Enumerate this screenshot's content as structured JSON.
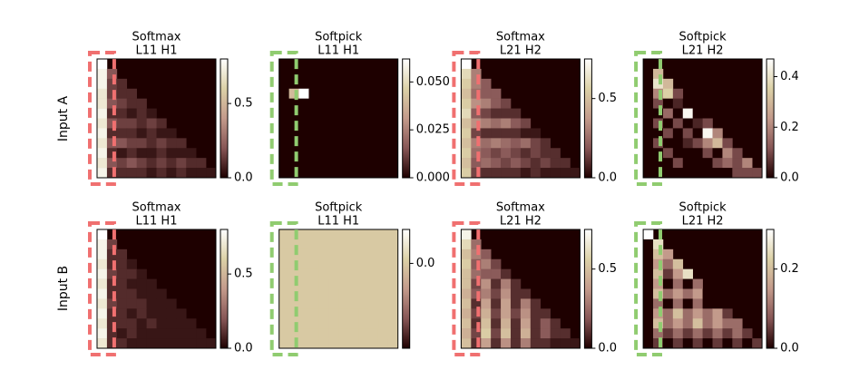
{
  "chart_data": [
    {
      "type": "heatmap",
      "title": "Softmax",
      "subtitle": "L11 H1",
      "ylabel": "Input A",
      "highlight": "#f07070",
      "colormap": [
        "#1e0000",
        "#875656",
        "#c39a8b",
        "#dcd1a7",
        "#ffffff"
      ],
      "clim": [
        0,
        0.8
      ],
      "cticks": [
        {
          "value": 0,
          "label": "0.0"
        },
        0.5
      ],
      "values": [
        [
          0.8
        ],
        [
          0.75,
          0.2
        ],
        [
          0.75,
          0.15,
          0.1
        ],
        [
          0.7,
          0.15,
          0.1,
          0.1
        ],
        [
          0.7,
          0.2,
          0.15,
          0.1,
          0.1
        ],
        [
          0.75,
          0.1,
          0.1,
          0.05,
          0.1,
          0.05
        ],
        [
          0.7,
          0.2,
          0.15,
          0.15,
          0.1,
          0.15,
          0.1
        ],
        [
          0.75,
          0.1,
          0.1,
          0.1,
          0.05,
          0.1,
          0.05,
          0.05
        ],
        [
          0.7,
          0.2,
          0.2,
          0.15,
          0.15,
          0.1,
          0.15,
          0.1,
          0.1
        ],
        [
          0.75,
          0.1,
          0.05,
          0.1,
          0.05,
          0.05,
          0.1,
          0.05,
          0.05,
          0.05
        ],
        [
          0.7,
          0.2,
          0.15,
          0.2,
          0.15,
          0.1,
          0.15,
          0.1,
          0.15,
          0.1,
          0.1
        ],
        [
          0.75,
          0.1,
          0.1,
          0.1,
          0.1,
          0.05,
          0.1,
          0.05,
          0.1,
          0.05,
          0.05,
          0.05
        ]
      ]
    },
    {
      "type": "heatmap",
      "title": "Softpick",
      "subtitle": "L11 H1",
      "highlight": "#90cc70",
      "colormap": [
        "#1e0000",
        "#875656",
        "#c39a8b",
        "#dcd1a7",
        "#ffffff"
      ],
      "clim": [
        0,
        0.062
      ],
      "cticks": [
        {
          "value": 0,
          "label": "0.000"
        },
        0.025,
        {
          "value": 0.05,
          "label": "0.050"
        }
      ],
      "values": [
        [
          0
        ],
        [
          0,
          0
        ],
        [
          0,
          0,
          0
        ],
        [
          0,
          0.04,
          0.062,
          0
        ],
        [
          0,
          0,
          0,
          0,
          0
        ],
        [
          0,
          0,
          0,
          0,
          0,
          0
        ],
        [
          0,
          0,
          0,
          0,
          0,
          0,
          0
        ],
        [
          0,
          0,
          0,
          0,
          0,
          0,
          0,
          0
        ],
        [
          0,
          0,
          0,
          0,
          0,
          0,
          0,
          0,
          0
        ],
        [
          0,
          0,
          0,
          0,
          0,
          0,
          0,
          0,
          0,
          0
        ],
        [
          0,
          0,
          0,
          0,
          0,
          0,
          0,
          0,
          0,
          0,
          0
        ],
        [
          0,
          0,
          0,
          0,
          0,
          0,
          0,
          0,
          0,
          0,
          0,
          0
        ]
      ]
    },
    {
      "type": "heatmap",
      "title": "Softmax",
      "subtitle": "L21 H2",
      "highlight": "#f07070",
      "colormap": [
        "#1e0000",
        "#875656",
        "#c39a8b",
        "#dcd1a7",
        "#ffffff"
      ],
      "clim": [
        0,
        0.75
      ],
      "cticks": [
        {
          "value": 0,
          "label": "0.0"
        },
        0.5
      ],
      "values": [
        [
          0.75
        ],
        [
          0.6,
          0.3
        ],
        [
          0.55,
          0.3,
          0.2
        ],
        [
          0.5,
          0.25,
          0.2,
          0.2
        ],
        [
          0.55,
          0.35,
          0.3,
          0.2,
          0.15
        ],
        [
          0.6,
          0.2,
          0.15,
          0.1,
          0.1,
          0.1
        ],
        [
          0.5,
          0.35,
          0.3,
          0.25,
          0.3,
          0.2,
          0.15
        ],
        [
          0.55,
          0.15,
          0.1,
          0.1,
          0.1,
          0.1,
          0.05,
          0.05
        ],
        [
          0.5,
          0.3,
          0.25,
          0.3,
          0.25,
          0.2,
          0.25,
          0.15,
          0.1
        ],
        [
          0.55,
          0.25,
          0.2,
          0.15,
          0.2,
          0.15,
          0.1,
          0.15,
          0.1,
          0.1
        ],
        [
          0.5,
          0.2,
          0.25,
          0.2,
          0.15,
          0.2,
          0.15,
          0.1,
          0.15,
          0.1,
          0.1
        ],
        [
          0.55,
          0.15,
          0.1,
          0.1,
          0.1,
          0.1,
          0.05,
          0.1,
          0.05,
          0.05,
          0.05,
          0.05
        ]
      ]
    },
    {
      "type": "heatmap",
      "title": "Softpick",
      "subtitle": "L21 H2",
      "highlight": "#90cc70",
      "colormap": [
        "#1e0000",
        "#875656",
        "#c39a8b",
        "#dcd1a7",
        "#ffffff"
      ],
      "clim": [
        0,
        0.47
      ],
      "cticks": [
        {
          "value": 0,
          "label": "0.0"
        },
        0.2,
        0.4
      ],
      "values": [
        [
          0
        ],
        [
          0,
          0.3
        ],
        [
          0,
          0.4,
          0.3
        ],
        [
          0,
          0.2,
          0.35,
          0.1
        ],
        [
          0,
          0.1,
          0,
          0.05,
          0
        ],
        [
          0,
          0,
          0.15,
          0,
          0.45,
          0
        ],
        [
          0,
          0.1,
          0,
          0.1,
          0,
          0.05,
          0.1
        ],
        [
          0,
          0,
          0.1,
          0,
          0.1,
          0,
          0.45,
          0.2
        ],
        [
          0,
          0.1,
          0,
          0,
          0.05,
          0.1,
          0.2,
          0.3,
          0.1
        ],
        [
          0,
          0,
          0.1,
          0,
          0,
          0,
          0.1,
          0,
          0.2,
          0.1
        ],
        [
          0,
          0,
          0,
          0.1,
          0,
          0,
          0,
          0.1,
          0.15,
          0.1,
          0.2
        ],
        [
          0,
          0,
          0,
          0,
          0,
          0,
          0,
          0,
          0,
          0.1,
          0.1,
          0.1
        ]
      ]
    },
    {
      "type": "heatmap",
      "title": "Softmax",
      "subtitle": "L11 H1",
      "ylabel": "Input B",
      "highlight": "#f07070",
      "colormap": [
        "#1e0000",
        "#875656",
        "#c39a8b",
        "#dcd1a7",
        "#ffffff"
      ],
      "clim": [
        0,
        0.8
      ],
      "cticks": [
        {
          "value": 0,
          "label": "0.0"
        },
        0.5
      ],
      "values": [
        [
          0.8
        ],
        [
          0.75,
          0.15
        ],
        [
          0.75,
          0.1,
          0.1
        ],
        [
          0.7,
          0.1,
          0.1,
          0.05
        ],
        [
          0.75,
          0.15,
          0.1,
          0.1,
          0.05
        ],
        [
          0.7,
          0.1,
          0.1,
          0.05,
          0.05,
          0.05
        ],
        [
          0.75,
          0.1,
          0.1,
          0.1,
          0.05,
          0.05,
          0.05
        ],
        [
          0.7,
          0.15,
          0.1,
          0.1,
          0.1,
          0.05,
          0.05,
          0.05
        ],
        [
          0.75,
          0.1,
          0.1,
          0.05,
          0.1,
          0.05,
          0.05,
          0.05,
          0.05
        ],
        [
          0.7,
          0.1,
          0.1,
          0.1,
          0.05,
          0.1,
          0.05,
          0.05,
          0.05,
          0.05
        ],
        [
          0.75,
          0.1,
          0.05,
          0.1,
          0.05,
          0.05,
          0.05,
          0.05,
          0.05,
          0.05,
          0.05
        ],
        [
          0.7,
          0.1,
          0.1,
          0.05,
          0.05,
          0.05,
          0.05,
          0.05,
          0.05,
          0.05,
          0.05,
          0.05
        ]
      ]
    },
    {
      "type": "heatmap",
      "title": "Softpick",
      "subtitle": "L11 H1",
      "highlight": "#90cc70",
      "colormap": [
        "#1e0000",
        "#875656",
        "#c39a8b",
        "#dcd1a7",
        "#ffffff"
      ],
      "clim": [
        -0.1,
        0.04
      ],
      "cticks": [
        {
          "value": 0,
          "label": "0.0"
        }
      ],
      "values": [
        [
          0
        ],
        [
          0,
          0
        ],
        [
          0,
          0,
          0
        ],
        [
          0,
          0,
          0,
          0
        ],
        [
          0,
          0,
          0,
          0,
          0
        ],
        [
          0,
          0,
          0,
          0,
          0,
          0
        ],
        [
          0,
          0,
          0,
          0,
          0,
          0,
          0
        ],
        [
          0,
          0,
          0,
          0,
          0,
          0,
          0,
          0
        ],
        [
          0,
          0,
          0,
          0,
          0,
          0,
          0,
          0,
          0
        ],
        [
          0,
          0,
          0,
          0,
          0,
          0,
          0,
          0,
          0,
          0
        ],
        [
          0,
          0,
          0,
          0,
          0,
          0,
          0,
          0,
          0,
          0,
          0
        ],
        [
          0,
          0,
          0,
          0,
          0,
          0,
          0,
          0,
          0,
          0,
          0,
          0
        ]
      ]
    },
    {
      "type": "heatmap",
      "title": "Softmax",
      "subtitle": "L21 H2",
      "highlight": "#f07070",
      "colormap": [
        "#1e0000",
        "#875656",
        "#c39a8b",
        "#dcd1a7",
        "#ffffff"
      ],
      "clim": [
        0,
        0.75
      ],
      "cticks": [
        {
          "value": 0,
          "label": "0.0"
        },
        0.5
      ],
      "values": [
        [
          0.7
        ],
        [
          0.6,
          0.25
        ],
        [
          0.5,
          0.3,
          0.2
        ],
        [
          0.55,
          0.2,
          0.3,
          0.15
        ],
        [
          0.5,
          0.25,
          0.2,
          0.2,
          0.1
        ],
        [
          0.5,
          0.15,
          0.35,
          0.1,
          0.3,
          0.1
        ],
        [
          0.45,
          0.2,
          0.3,
          0.15,
          0.35,
          0.1,
          0.1
        ],
        [
          0.5,
          0.1,
          0.4,
          0.1,
          0.4,
          0.1,
          0.3,
          0.1
        ],
        [
          0.45,
          0.15,
          0.45,
          0.15,
          0.4,
          0.15,
          0.35,
          0.1,
          0.1
        ],
        [
          0.5,
          0.1,
          0.5,
          0.1,
          0.45,
          0.1,
          0.4,
          0.1,
          0.2,
          0.1
        ],
        [
          0.45,
          0.15,
          0.55,
          0.15,
          0.5,
          0.1,
          0.45,
          0.1,
          0.2,
          0.1,
          0.1
        ],
        [
          0.5,
          0.1,
          0.4,
          0.1,
          0.35,
          0.1,
          0.3,
          0.1,
          0.1,
          0.05,
          0.05,
          0.05
        ]
      ]
    },
    {
      "type": "heatmap",
      "title": "Softpick",
      "subtitle": "L21 H2",
      "highlight": "#90cc70",
      "colormap": [
        "#1e0000",
        "#875656",
        "#c39a8b",
        "#dcd1a7",
        "#ffffff"
      ],
      "clim": [
        0,
        0.3
      ],
      "cticks": [
        {
          "value": 0,
          "label": "0.0"
        },
        0.2
      ],
      "values": [
        [
          0.3
        ],
        [
          0,
          0.25
        ],
        [
          0,
          0.2,
          0.15
        ],
        [
          0,
          0.15,
          0.1,
          0.2
        ],
        [
          0,
          0.2,
          0.05,
          0.15,
          0.25
        ],
        [
          0,
          0.15,
          0,
          0.1,
          0,
          0.1
        ],
        [
          0,
          0.2,
          0.1,
          0.15,
          0.1,
          0.15,
          0
        ],
        [
          0,
          0.1,
          0,
          0.1,
          0,
          0.1,
          0,
          0
        ],
        [
          0,
          0.15,
          0.1,
          0.2,
          0.1,
          0.15,
          0.1,
          0.15,
          0.05
        ],
        [
          0,
          0.2,
          0.1,
          0.15,
          0.1,
          0.2,
          0.1,
          0.15,
          0.1,
          0.1
        ],
        [
          0,
          0.1,
          0.05,
          0.1,
          0.05,
          0.1,
          0.05,
          0.1,
          0.05,
          0.1,
          0.05
        ],
        [
          0,
          0.05,
          0,
          0.05,
          0,
          0.05,
          0,
          0.05,
          0,
          0.05,
          0,
          0.05
        ]
      ]
    }
  ]
}
